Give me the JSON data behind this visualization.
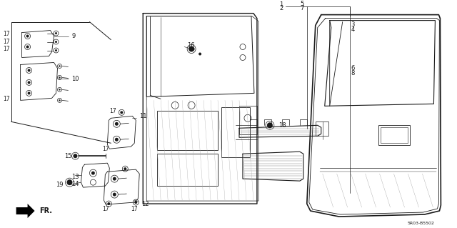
{
  "background_color": "#ffffff",
  "line_color": "#1a1a1a",
  "fig_width": 6.4,
  "fig_height": 3.19,
  "dpi": 100,
  "watermark": "5R03-B5502",
  "fr_label": "FR."
}
